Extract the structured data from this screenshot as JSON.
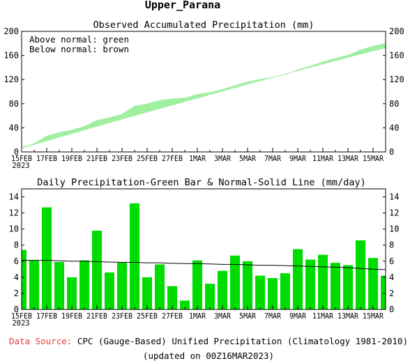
{
  "header": {
    "region": "Upper_Parana"
  },
  "chart_data": [
    {
      "type": "area",
      "title": "Observed Accumulated Precipitation (mm)",
      "legend": {
        "placement": "top-left",
        "lines": [
          "Above normal: green",
          "Below normal: brown"
        ]
      },
      "ylim": [
        0,
        200
      ],
      "yticks": [
        0,
        40,
        80,
        120,
        160,
        200
      ],
      "grid": false,
      "colors": {
        "above": "#a0f0a0",
        "below": "#e07850",
        "accum": "#000000"
      },
      "x_ticks": [
        "15FEB",
        "17FEB",
        "19FEB",
        "21FEB",
        "23FEB",
        "25FEB",
        "27FEB",
        "1MAR",
        "3MAR",
        "5MAR",
        "7MAR",
        "9MAR",
        "11MAR",
        "13MAR",
        "15MAR"
      ],
      "x_year": "2023",
      "series": [
        {
          "name": "Observed accumulated",
          "values": [
            7.4,
            13.5,
            26.2,
            32.1,
            36.1,
            42.2,
            52.0,
            56.6,
            62.4,
            75.6,
            79.6,
            85.2,
            88.1,
            89.2,
            95.3,
            98.5,
            103.3,
            110.0,
            116.0,
            120.2,
            124.1,
            128.6,
            136.1,
            142.3,
            149.1,
            154.9,
            160.4,
            169.0,
            175.4,
            179.6
          ]
        },
        {
          "name": "Normal accumulated",
          "values": [
            6.1,
            12.2,
            18.3,
            24.4,
            30.4,
            36.4,
            42.4,
            48.4,
            54.3,
            60.2,
            66.0,
            71.8,
            77.6,
            83.4,
            89.2,
            95.0,
            100.8,
            106.5,
            112.2,
            117.9,
            123.5,
            129.1,
            134.7,
            140.3,
            145.8,
            151.3,
            156.8,
            162.2,
            167.5,
            172.4
          ]
        }
      ]
    },
    {
      "type": "bar",
      "title": "Daily Precipitation-Green Bar & Normal-Solid Line (mm/day)",
      "ylim": [
        0,
        15
      ],
      "yticks": [
        0,
        2,
        4,
        6,
        8,
        10,
        12,
        14
      ],
      "grid": false,
      "colors": {
        "bar": "#00dc00",
        "normal": "#000000"
      },
      "x_ticks": [
        "15FEB",
        "17FEB",
        "19FEB",
        "21FEB",
        "23FEB",
        "25FEB",
        "27FEB",
        "1MAR",
        "3MAR",
        "5MAR",
        "7MAR",
        "9MAR",
        "11MAR",
        "13MAR",
        "15MAR"
      ],
      "x_year": "2023",
      "series": [
        {
          "name": "Observed daily",
          "values": [
            7.4,
            6.1,
            12.7,
            5.9,
            4.0,
            6.1,
            9.8,
            4.6,
            5.8,
            13.2,
            4.0,
            5.6,
            2.9,
            1.1,
            6.1,
            3.2,
            4.8,
            6.7,
            6.0,
            4.2,
            3.9,
            4.5,
            7.5,
            6.2,
            6.8,
            5.8,
            5.5,
            8.6,
            6.4,
            4.2
          ]
        },
        {
          "name": "Normal daily",
          "values": [
            6.1,
            6.1,
            6.1,
            6.05,
            6.0,
            6.0,
            5.95,
            5.9,
            5.85,
            5.85,
            5.8,
            5.8,
            5.75,
            5.7,
            5.7,
            5.65,
            5.6,
            5.6,
            5.55,
            5.5,
            5.5,
            5.45,
            5.4,
            5.35,
            5.3,
            5.25,
            5.2,
            5.1,
            5.0,
            4.95
          ]
        }
      ]
    }
  ],
  "footer": {
    "source_label": "Data Source:",
    "source_text": " CPC (Gauge-Based) Unified Precipitation (Climatology 1981-2010)",
    "updated": "(updated on 00Z16MAR2023)"
  }
}
